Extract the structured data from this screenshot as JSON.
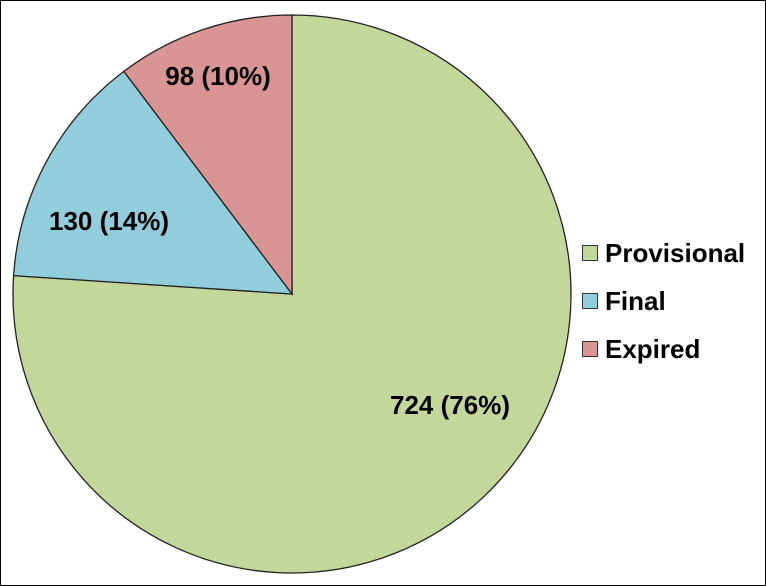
{
  "chart_data": {
    "type": "pie",
    "title": "",
    "start": "12 o'clock",
    "direction": "clockwise",
    "legend_position": "right",
    "slices": [
      {
        "name": "Provisional",
        "value": 724,
        "percent": "76%",
        "label": "724 (76%)",
        "color": "#c4d79b"
      },
      {
        "name": "Final",
        "value": 130,
        "percent": "14%",
        "label": "130 (14%)",
        "color": "#92cddc"
      },
      {
        "name": "Expired",
        "value": 98,
        "percent": "10%",
        "label": "98 (10%)",
        "color": "#d99594"
      }
    ]
  },
  "legend": {
    "items": [
      {
        "label": "Provisional",
        "color": "#c4d79b"
      },
      {
        "label": "Final",
        "color": "#92cddc"
      },
      {
        "label": "Expired",
        "color": "#d99594"
      }
    ]
  }
}
